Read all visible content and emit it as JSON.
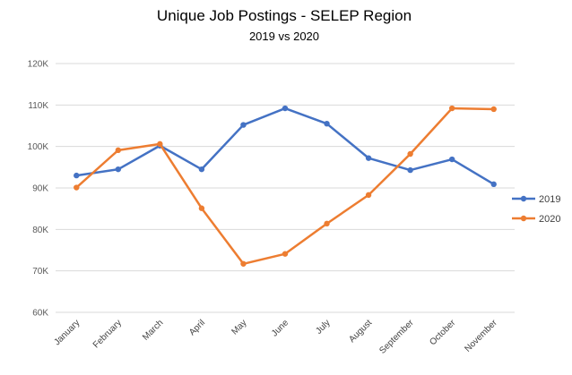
{
  "chart_data": {
    "type": "line",
    "title": "Unique Job Postings - SELEP Region",
    "subtitle": "2019 vs 2020",
    "xlabel": "",
    "ylabel": "",
    "categories": [
      "January",
      "February",
      "March",
      "April",
      "May",
      "June",
      "July",
      "August",
      "September",
      "October",
      "November"
    ],
    "ylim": [
      60000,
      120000
    ],
    "yticks": [
      {
        "value": 60000,
        "label": "60K"
      },
      {
        "value": 70000,
        "label": "70K"
      },
      {
        "value": 80000,
        "label": "80K"
      },
      {
        "value": 90000,
        "label": "90K"
      },
      {
        "value": 100000,
        "label": "100K"
      },
      {
        "value": 110000,
        "label": "110K"
      },
      {
        "value": 120000,
        "label": "120K"
      }
    ],
    "grid": true,
    "legend_position": "right",
    "series": [
      {
        "name": "2019",
        "color": "#4472C4",
        "values": [
          93000,
          94500,
          100200,
          94500,
          105200,
          109200,
          105500,
          97200,
          94300,
          96900,
          90900
        ]
      },
      {
        "name": "2020",
        "color": "#ED7D31",
        "values": [
          90100,
          99100,
          100600,
          85100,
          71700,
          74100,
          81400,
          88300,
          98200,
          109200,
          109000
        ]
      }
    ]
  }
}
